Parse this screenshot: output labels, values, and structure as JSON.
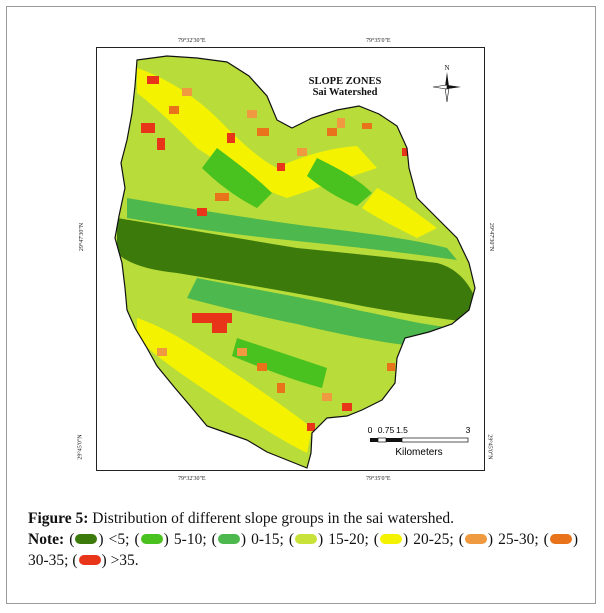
{
  "map": {
    "title": "SLOPE ZONES",
    "subtitle": "Sai Watershed",
    "north_label": "N",
    "lon_top": [
      "79°32'30\"E",
      "79°35'0\"E"
    ],
    "lon_bottom": [
      "79°32'30\"E",
      "79°35'0\"E"
    ],
    "lat_left": [
      "29°47'30\"N",
      "29°45'0\"N"
    ],
    "lat_right": [
      "29°47'30\"N",
      "29°45'0\"N"
    ],
    "scale_ticks": [
      "0",
      "0.75",
      "1.5",
      "3"
    ],
    "scale_unit": "Kilometers",
    "colors": {
      "lt5": "#3d7a0c",
      "c5_10": "#49c21f",
      "c0_15": "#4db84d",
      "c15_20": "#c8e23a",
      "c20_25": "#f5f200",
      "c25_30": "#ef9a40",
      "c30_35": "#e8731a",
      "gt35": "#e8351a"
    }
  },
  "caption": {
    "label": "Figure 5:",
    "text": " Distribution of different slope groups in the sai watershed.",
    "note_label": "Note:",
    "legend": [
      {
        "label": "<5;",
        "color_key": "lt5"
      },
      {
        "label": "5-10;",
        "color_key": "c5_10"
      },
      {
        "label": "0-15;",
        "color_key": "c0_15"
      },
      {
        "label": "15-20;",
        "color_key": "c15_20"
      },
      {
        "label": "20-25;",
        "color_key": "c20_25"
      },
      {
        "label": "25-30;",
        "color_key": "c25_30"
      },
      {
        "label": "30-35;",
        "color_key": "c30_35"
      },
      {
        "label": ">35.",
        "color_key": "gt35"
      }
    ]
  }
}
